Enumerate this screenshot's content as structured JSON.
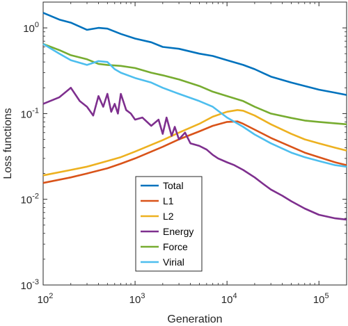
{
  "chart_data": {
    "type": "line",
    "xscale": "log",
    "yscale": "log",
    "xlim": [
      100,
      200000
    ],
    "ylim": [
      0.001,
      2
    ],
    "xlabel": "Generation",
    "ylabel": "Loss functions",
    "x_ticks": [
      {
        "value": 100,
        "base": "10",
        "exp": "2"
      },
      {
        "value": 1000,
        "base": "10",
        "exp": "3"
      },
      {
        "value": 10000,
        "base": "10",
        "exp": "4"
      },
      {
        "value": 100000,
        "base": "10",
        "exp": "5"
      }
    ],
    "y_ticks": [
      {
        "value": 0.001,
        "base": "10",
        "exp": "-3"
      },
      {
        "value": 0.01,
        "base": "10",
        "exp": "-2"
      },
      {
        "value": 0.1,
        "base": "10",
        "exp": "-1"
      },
      {
        "value": 1,
        "base": "10",
        "exp": "0"
      }
    ],
    "grid": false,
    "legend_position": "bottom-center",
    "series": [
      {
        "name": "Total",
        "color": "#0072BD",
        "points": [
          [
            100,
            1.5
          ],
          [
            150,
            1.25
          ],
          [
            200,
            1.15
          ],
          [
            300,
            0.95
          ],
          [
            400,
            1.0
          ],
          [
            500,
            0.98
          ],
          [
            700,
            0.85
          ],
          [
            1000,
            0.75
          ],
          [
            1500,
            0.68
          ],
          [
            2000,
            0.6
          ],
          [
            3000,
            0.57
          ],
          [
            5000,
            0.5
          ],
          [
            7000,
            0.47
          ],
          [
            10000,
            0.42
          ],
          [
            15000,
            0.37
          ],
          [
            20000,
            0.33
          ],
          [
            30000,
            0.27
          ],
          [
            50000,
            0.23
          ],
          [
            70000,
            0.21
          ],
          [
            100000,
            0.19
          ],
          [
            150000,
            0.175
          ],
          [
            200000,
            0.165
          ]
        ]
      },
      {
        "name": "L1",
        "color": "#D95319",
        "points": [
          [
            100,
            0.0155
          ],
          [
            200,
            0.018
          ],
          [
            300,
            0.02
          ],
          [
            500,
            0.023
          ],
          [
            700,
            0.026
          ],
          [
            1000,
            0.03
          ],
          [
            2000,
            0.041
          ],
          [
            3000,
            0.05
          ],
          [
            5000,
            0.062
          ],
          [
            7000,
            0.072
          ],
          [
            10000,
            0.08
          ],
          [
            13000,
            0.081
          ],
          [
            15000,
            0.076
          ],
          [
            20000,
            0.065
          ],
          [
            30000,
            0.052
          ],
          [
            50000,
            0.041
          ],
          [
            70000,
            0.035
          ],
          [
            100000,
            0.031
          ],
          [
            150000,
            0.027
          ],
          [
            200000,
            0.025
          ]
        ]
      },
      {
        "name": "L2",
        "color": "#EDB120",
        "points": [
          [
            100,
            0.019
          ],
          [
            200,
            0.022
          ],
          [
            300,
            0.024
          ],
          [
            500,
            0.028
          ],
          [
            700,
            0.031
          ],
          [
            1000,
            0.036
          ],
          [
            2000,
            0.049
          ],
          [
            3000,
            0.06
          ],
          [
            5000,
            0.076
          ],
          [
            7000,
            0.092
          ],
          [
            10000,
            0.105
          ],
          [
            13000,
            0.11
          ],
          [
            15000,
            0.108
          ],
          [
            20000,
            0.095
          ],
          [
            30000,
            0.075
          ],
          [
            50000,
            0.058
          ],
          [
            70000,
            0.05
          ],
          [
            100000,
            0.045
          ],
          [
            150000,
            0.04
          ],
          [
            200000,
            0.037
          ]
        ]
      },
      {
        "name": "Energy",
        "color": "#7E2F8E",
        "points": [
          [
            100,
            0.13
          ],
          [
            150,
            0.155
          ],
          [
            200,
            0.2
          ],
          [
            250,
            0.14
          ],
          [
            300,
            0.12
          ],
          [
            350,
            0.095
          ],
          [
            400,
            0.16
          ],
          [
            450,
            0.12
          ],
          [
            500,
            0.17
          ],
          [
            550,
            0.105
          ],
          [
            600,
            0.13
          ],
          [
            650,
            0.1
          ],
          [
            700,
            0.17
          ],
          [
            800,
            0.11
          ],
          [
            900,
            0.1
          ],
          [
            1000,
            0.085
          ],
          [
            1200,
            0.09
          ],
          [
            1500,
            0.072
          ],
          [
            1800,
            0.085
          ],
          [
            2000,
            0.058
          ],
          [
            2200,
            0.09
          ],
          [
            2500,
            0.055
          ],
          [
            2700,
            0.07
          ],
          [
            3000,
            0.05
          ],
          [
            3500,
            0.06
          ],
          [
            4000,
            0.045
          ],
          [
            5000,
            0.042
          ],
          [
            6000,
            0.038
          ],
          [
            7000,
            0.033
          ],
          [
            8000,
            0.03
          ],
          [
            10000,
            0.027
          ],
          [
            12000,
            0.025
          ],
          [
            15000,
            0.022
          ],
          [
            20000,
            0.018
          ],
          [
            25000,
            0.015
          ],
          [
            30000,
            0.013
          ],
          [
            40000,
            0.011
          ],
          [
            50000,
            0.0095
          ],
          [
            70000,
            0.0078
          ],
          [
            100000,
            0.0066
          ],
          [
            150000,
            0.006
          ],
          [
            200000,
            0.0058
          ]
        ]
      },
      {
        "name": "Force",
        "color": "#77AC30",
        "points": [
          [
            100,
            0.65
          ],
          [
            150,
            0.55
          ],
          [
            200,
            0.48
          ],
          [
            300,
            0.43
          ],
          [
            400,
            0.38
          ],
          [
            500,
            0.37
          ],
          [
            700,
            0.36
          ],
          [
            1000,
            0.34
          ],
          [
            1500,
            0.3
          ],
          [
            2000,
            0.28
          ],
          [
            3000,
            0.25
          ],
          [
            5000,
            0.21
          ],
          [
            7000,
            0.18
          ],
          [
            10000,
            0.16
          ],
          [
            15000,
            0.14
          ],
          [
            20000,
            0.12
          ],
          [
            30000,
            0.1
          ],
          [
            50000,
            0.089
          ],
          [
            70000,
            0.083
          ],
          [
            100000,
            0.08
          ],
          [
            150000,
            0.077
          ],
          [
            200000,
            0.075
          ]
        ]
      },
      {
        "name": "Virial",
        "color": "#4DBEEE",
        "points": [
          [
            100,
            0.65
          ],
          [
            150,
            0.5
          ],
          [
            200,
            0.42
          ],
          [
            300,
            0.37
          ],
          [
            400,
            0.41
          ],
          [
            500,
            0.4
          ],
          [
            600,
            0.33
          ],
          [
            700,
            0.3
          ],
          [
            1000,
            0.26
          ],
          [
            1500,
            0.23
          ],
          [
            2000,
            0.2
          ],
          [
            3000,
            0.17
          ],
          [
            5000,
            0.14
          ],
          [
            7000,
            0.12
          ],
          [
            10000,
            0.09
          ],
          [
            15000,
            0.07
          ],
          [
            20000,
            0.057
          ],
          [
            30000,
            0.045
          ],
          [
            50000,
            0.035
          ],
          [
            70000,
            0.031
          ],
          [
            100000,
            0.028
          ],
          [
            150000,
            0.025
          ],
          [
            200000,
            0.024
          ]
        ]
      }
    ]
  }
}
